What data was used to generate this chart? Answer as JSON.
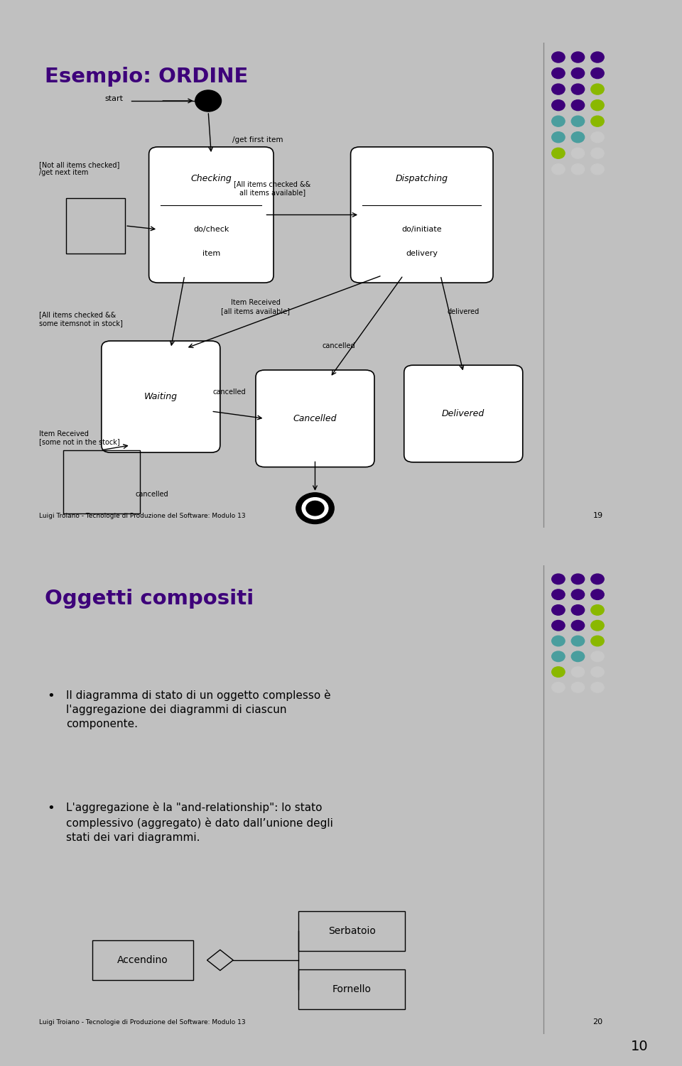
{
  "slide1_title": "Esempio: ORDINE",
  "slide1_footer": "Luigi Troiano - Tecnologie di Produzione del Software: Modulo 13",
  "slide1_page": "19",
  "slide2_title": "Oggetti compositi",
  "slide2_footer": "Luigi Troiano - Tecnologie di Produzione del Software: Modulo 13",
  "slide2_page": "20",
  "title_color": "#3d007a",
  "text_color": "#000000",
  "box_facecolor": "#ffffff",
  "box_edgecolor": "#000000",
  "bg_color": "#ffffff",
  "dot_colors": [
    [
      "#3d007a",
      "#3d007a",
      "#3d007a"
    ],
    [
      "#3d007a",
      "#3d007a",
      "#3d007a"
    ],
    [
      "#3d007a",
      "#3d007a",
      "#8ab800"
    ],
    [
      "#3d007a",
      "#3d007a",
      "#8ab800"
    ],
    [
      "#4a9e9e",
      "#4a9e9e",
      "#8ab800"
    ],
    [
      "#4a9e9e",
      "#4a9e9e",
      "#c8c8c8"
    ],
    [
      "#8ab800",
      "#c8c8c8",
      "#c8c8c8"
    ],
    [
      "#c8c8c8",
      "#c8c8c8",
      "#c8c8c8"
    ]
  ],
  "page_number": "10"
}
